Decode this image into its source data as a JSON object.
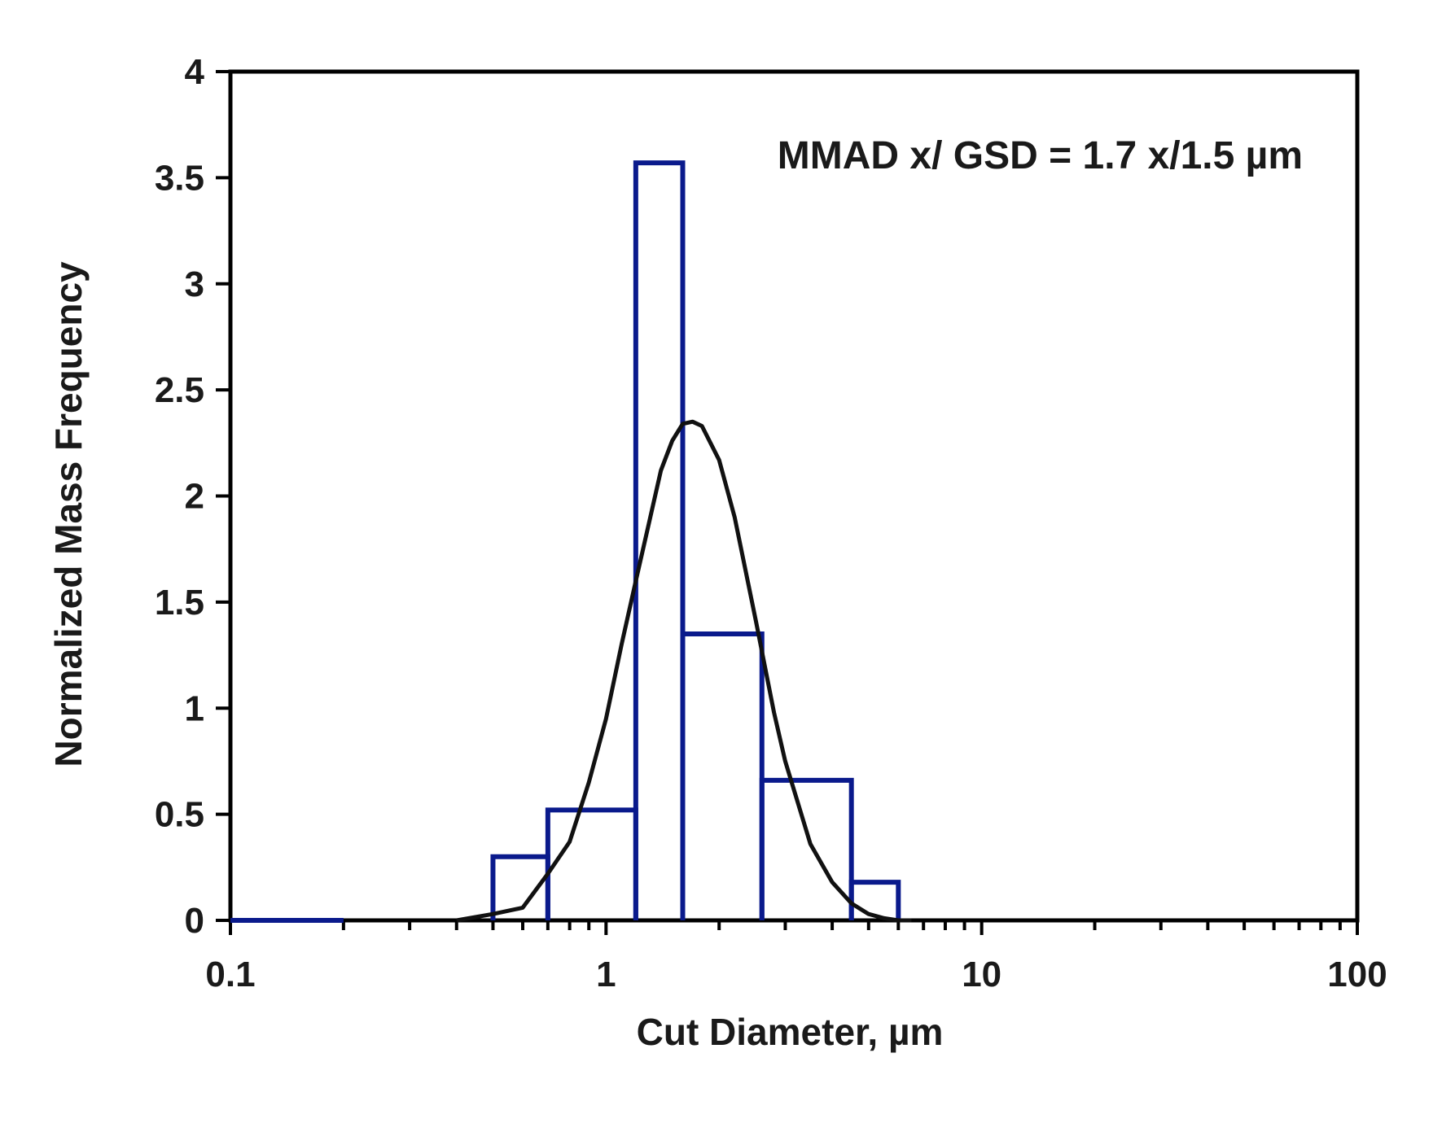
{
  "chart_data": {
    "type": "line",
    "title": "",
    "xlabel": "Cut Diameter, µm",
    "ylabel": "Normalized Mass Frequency",
    "annotation": "MMAD x/ GSD = 1.7 x/1.5 µm",
    "x_scale": "log",
    "xlim": [
      0.1,
      100
    ],
    "ylim": [
      0,
      4
    ],
    "x_tick_labels": [
      "0.1",
      "1",
      "10",
      "100"
    ],
    "y_tick_labels": [
      "0",
      "0.5",
      "1",
      "1.5",
      "2",
      "2.5",
      "3",
      "3.5",
      "4"
    ],
    "grid": false,
    "series": [
      {
        "style": "step",
        "color": "#0a1a8c",
        "bins": [
          {
            "x0": 0.1,
            "x1": 0.2,
            "y": 0
          },
          {
            "x0": 0.5,
            "x1": 0.7,
            "y": 0.3
          },
          {
            "x0": 0.7,
            "x1": 1.2,
            "y": 0.52
          },
          {
            "x0": 1.2,
            "x1": 1.6,
            "y": 3.57
          },
          {
            "x0": 1.6,
            "x1": 2.6,
            "y": 1.35
          },
          {
            "x0": 2.6,
            "x1": 4.5,
            "y": 0.66
          },
          {
            "x0": 4.5,
            "x1": 6.0,
            "y": 0.18
          }
        ]
      },
      {
        "style": "line",
        "color": "#111111",
        "x": [
          0.4,
          0.5,
          0.6,
          0.7,
          0.8,
          0.9,
          1.0,
          1.1,
          1.2,
          1.3,
          1.4,
          1.5,
          1.6,
          1.7,
          1.8,
          2.0,
          2.2,
          2.5,
          2.8,
          3.0,
          3.5,
          4.0,
          4.5,
          5.0,
          5.5,
          6.0,
          6.5
        ],
        "y": [
          0,
          0.03,
          0.06,
          0.22,
          0.37,
          0.65,
          0.95,
          1.3,
          1.6,
          1.87,
          2.12,
          2.26,
          2.34,
          2.35,
          2.33,
          2.17,
          1.9,
          1.42,
          0.98,
          0.75,
          0.36,
          0.18,
          0.08,
          0.03,
          0.01,
          0.0,
          0
        ]
      }
    ]
  }
}
